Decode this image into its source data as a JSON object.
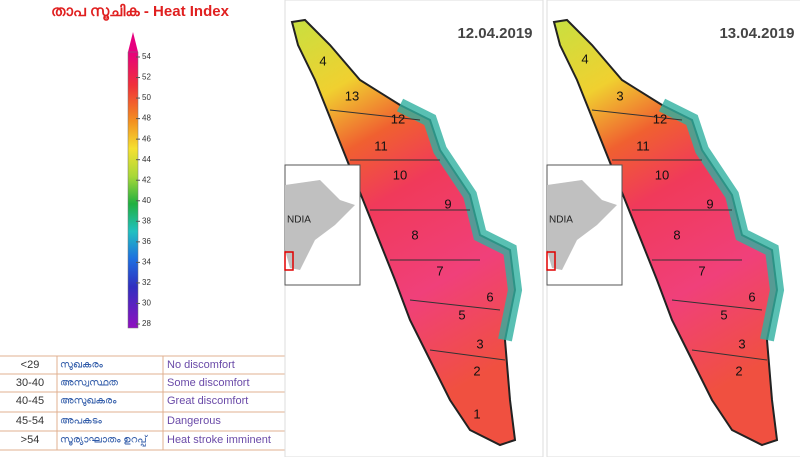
{
  "legend": {
    "title": "താപ സൂചിക  - Heat Index",
    "ticks": [
      28,
      30,
      32,
      34,
      36,
      38,
      40,
      42,
      44,
      46,
      48,
      50,
      52,
      54
    ]
  },
  "table": {
    "rows": [
      [
        "<29",
        "സുഖകരം",
        "No discomfort"
      ],
      [
        "30-40",
        "അസ്വസ്ഥത",
        "Some discomfort"
      ],
      [
        "40-45",
        "അസുഖകരം",
        "Great discomfort"
      ],
      [
        "45-54",
        "അപകടം",
        "Dangerous"
      ],
      [
        ">54",
        "സൂര്യാഘാതം ഉറപ്പ്",
        "Heat stroke imminent"
      ]
    ]
  },
  "maps": [
    {
      "date": "12.04.2019",
      "inset_label": "NDIA",
      "district_labels": [
        "4",
        "13",
        "12",
        "11",
        "10",
        "9",
        "8",
        "7",
        "6",
        "5",
        "3",
        "2",
        "1"
      ]
    },
    {
      "date": "13.04.2019",
      "inset_label": "NDIA",
      "district_labels": [
        "4",
        "3",
        "12",
        "11",
        "10",
        "9",
        "8",
        "7",
        "6",
        "5",
        "3",
        "2"
      ]
    }
  ]
}
